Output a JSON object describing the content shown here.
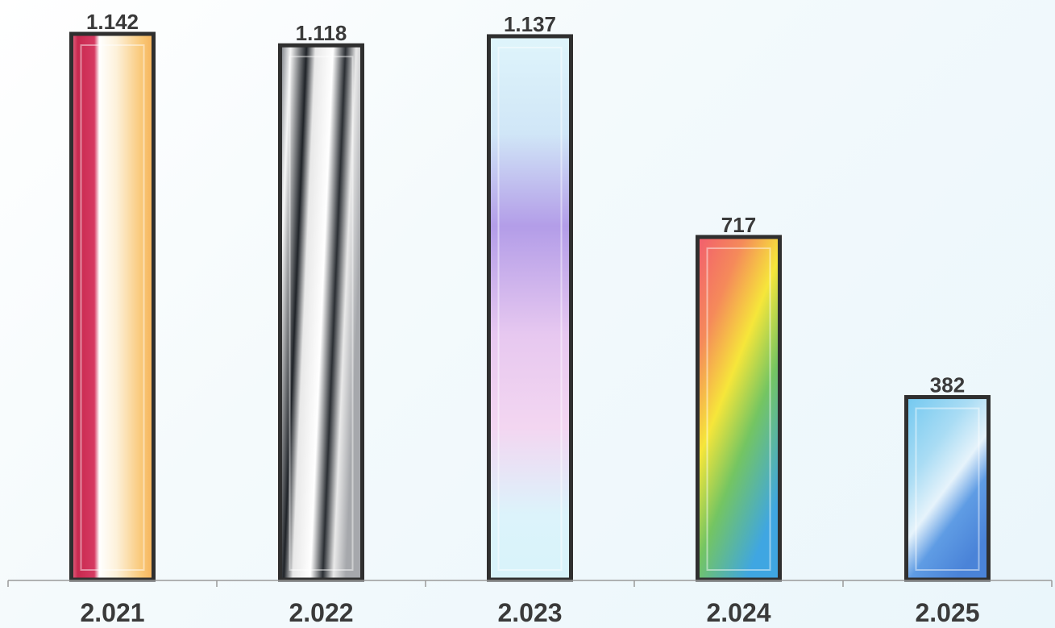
{
  "chart_data": {
    "type": "bar",
    "categories": [
      "2.021",
      "2.022",
      "2.023",
      "2.024",
      "2.025"
    ],
    "values": [
      1142,
      1118,
      1137,
      717,
      382
    ],
    "value_labels": [
      "1.142",
      "1.118",
      "1.137",
      "717",
      "382"
    ],
    "title": "",
    "xlabel": "",
    "ylabel": "",
    "ylim": [
      0,
      1142
    ],
    "grid": false,
    "legend": "none",
    "bar_fills": [
      "bar-fill-0",
      "bar-fill-1",
      "bar-fill-2",
      "bar-fill-3",
      "bar-fill-4"
    ],
    "outline_color": "#2f2f2f"
  }
}
